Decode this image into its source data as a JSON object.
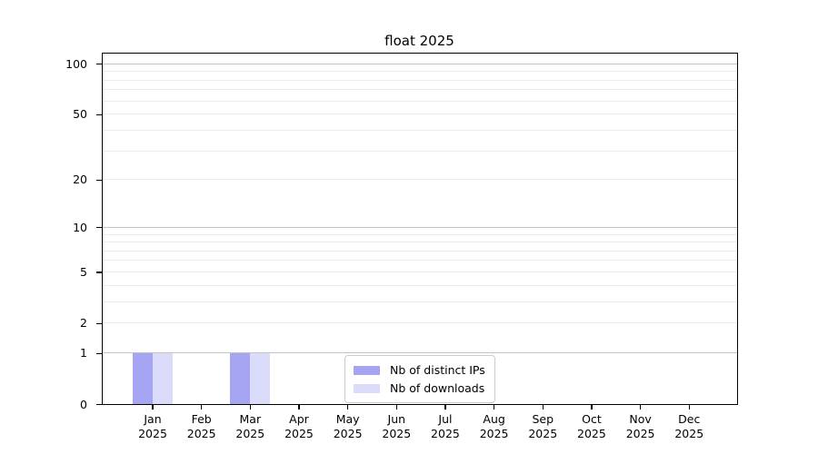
{
  "chart_data": {
    "type": "bar",
    "title": "float 2025",
    "categories": [
      "Jan",
      "Feb",
      "Mar",
      "Apr",
      "May",
      "Jun",
      "Jul",
      "Aug",
      "Sep",
      "Oct",
      "Nov",
      "Dec"
    ],
    "category_year": "2025",
    "series": [
      {
        "name": "Nb of distinct IPs",
        "color": "#a5a5f3",
        "values": [
          1,
          0,
          1,
          0,
          0,
          0,
          0,
          0,
          0,
          0,
          0,
          0
        ]
      },
      {
        "name": "Nb of downloads",
        "color": "#dbdbfa",
        "values": [
          1,
          0,
          1,
          0,
          0,
          0,
          0,
          0,
          0,
          0,
          0,
          0
        ]
      }
    ],
    "xlabel": "",
    "ylabel": "",
    "y_scale": "log1p",
    "ylim": [
      0,
      115
    ],
    "y_tick_values": [
      0,
      1,
      2,
      5,
      10,
      20,
      50,
      100
    ],
    "grid": true,
    "y_major_gridlines": [
      1,
      10,
      100
    ],
    "y_minor_gridlines": [
      2,
      3,
      4,
      5,
      6,
      7,
      8,
      9,
      20,
      30,
      40,
      50,
      60,
      70,
      80,
      90
    ],
    "legend_position": "lower center"
  },
  "colors": {
    "major_grid": "#c3c3c3",
    "minor_grid": "#ececec",
    "spine": "#000000",
    "background": "#ffffff"
  }
}
